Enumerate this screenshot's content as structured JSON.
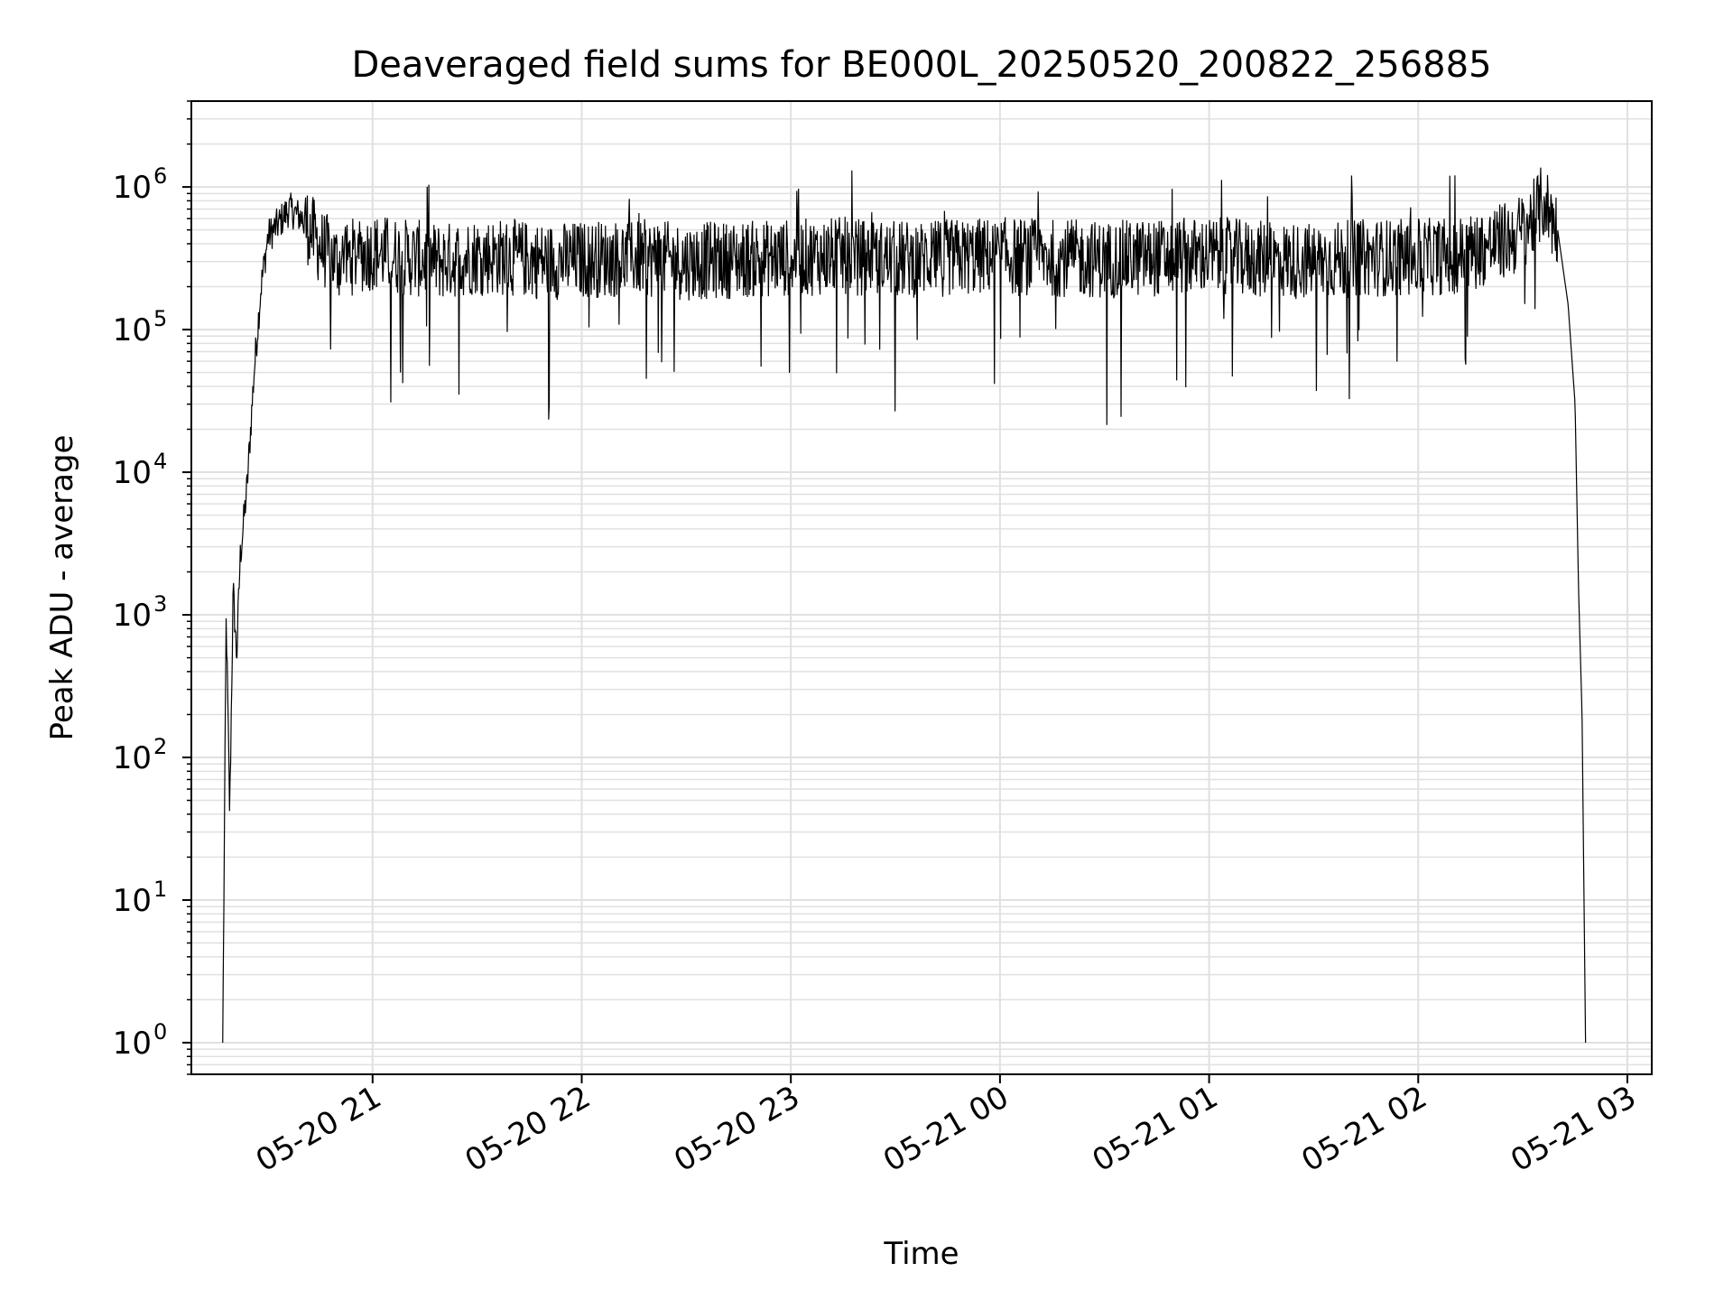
{
  "chart_data": {
    "type": "line",
    "title": "Deaveraged field sums for BE000L_20250520_200822_256885",
    "xlabel": "Time",
    "ylabel": "Peak ADU - average",
    "yscale": "log",
    "ylim": [
      0.6,
      4000000
    ],
    "xlim": [
      "05-20 20:08",
      "05-21 03:07"
    ],
    "grid": "major-and-minor",
    "series_color": "#000000",
    "grid_color": "#e0e0e0",
    "x_ticks": [
      {
        "value": "05-20 21:00",
        "label": "05-20 21"
      },
      {
        "value": "05-20 22:00",
        "label": "05-20 22"
      },
      {
        "value": "05-20 23:00",
        "label": "05-20 23"
      },
      {
        "value": "05-21 00:00",
        "label": "05-21 00"
      },
      {
        "value": "05-21 01:00",
        "label": "05-21 01"
      },
      {
        "value": "05-21 02:00",
        "label": "05-21 02"
      },
      {
        "value": "05-21 03:00",
        "label": "05-21 03"
      }
    ],
    "y_ticks": [
      {
        "value": 1,
        "base": "10",
        "exp": "0"
      },
      {
        "value": 10,
        "base": "10",
        "exp": "1"
      },
      {
        "value": 100,
        "base": "10",
        "exp": "2"
      },
      {
        "value": 1000,
        "base": "10",
        "exp": "3"
      },
      {
        "value": 10000,
        "base": "10",
        "exp": "4"
      },
      {
        "value": 100000,
        "base": "10",
        "exp": "5"
      },
      {
        "value": 1000000,
        "base": "10",
        "exp": "6"
      }
    ],
    "series": [
      {
        "x": [
          "05-20 20:17",
          "05-20 20:18",
          "05-20 20:19",
          "05-20 20:20",
          "05-20 20:21",
          "05-20 20:22",
          "05-20 20:24",
          "05-20 20:26",
          "05-20 20:28",
          "05-20 20:30",
          "05-20 20:33",
          "05-20 20:36",
          "05-20 20:40",
          "05-20 20:45",
          "05-20 20:50",
          "05-20 20:55",
          "05-20 21:00",
          "05-20 21:10",
          "05-20 21:20",
          "05-20 21:30",
          "05-20 21:40",
          "05-20 21:50",
          "05-20 22:00",
          "05-20 22:15",
          "05-20 22:30",
          "05-20 22:45",
          "05-20 23:00",
          "05-20 23:15",
          "05-20 23:30",
          "05-20 23:45",
          "05-21 00:00",
          "05-21 00:15",
          "05-21 00:30",
          "05-21 00:45",
          "05-21 01:00",
          "05-21 01:15",
          "05-21 01:30",
          "05-21 01:45",
          "05-21 02:00",
          "05-21 02:10",
          "05-21 02:20",
          "05-21 02:28",
          "05-21 02:33",
          "05-21 02:36",
          "05-21 02:40",
          "05-21 02:43",
          "05-21 02:45",
          "05-21 02:46",
          "05-21 02:47",
          "05-21 02:48"
        ],
        "y": [
          1,
          1000,
          40,
          1500,
          500,
          2500,
          8000,
          50000,
          200000,
          450000,
          550000,
          700000,
          600000,
          380000,
          300000,
          330000,
          350000,
          320000,
          300000,
          330000,
          320000,
          300000,
          310000,
          320000,
          300000,
          310000,
          320000,
          330000,
          310000,
          320000,
          330000,
          320000,
          310000,
          320000,
          330000,
          310000,
          300000,
          320000,
          320000,
          330000,
          380000,
          450000,
          600000,
          800000,
          500000,
          150000,
          30000,
          1500,
          200,
          1
        ]
      }
    ]
  }
}
